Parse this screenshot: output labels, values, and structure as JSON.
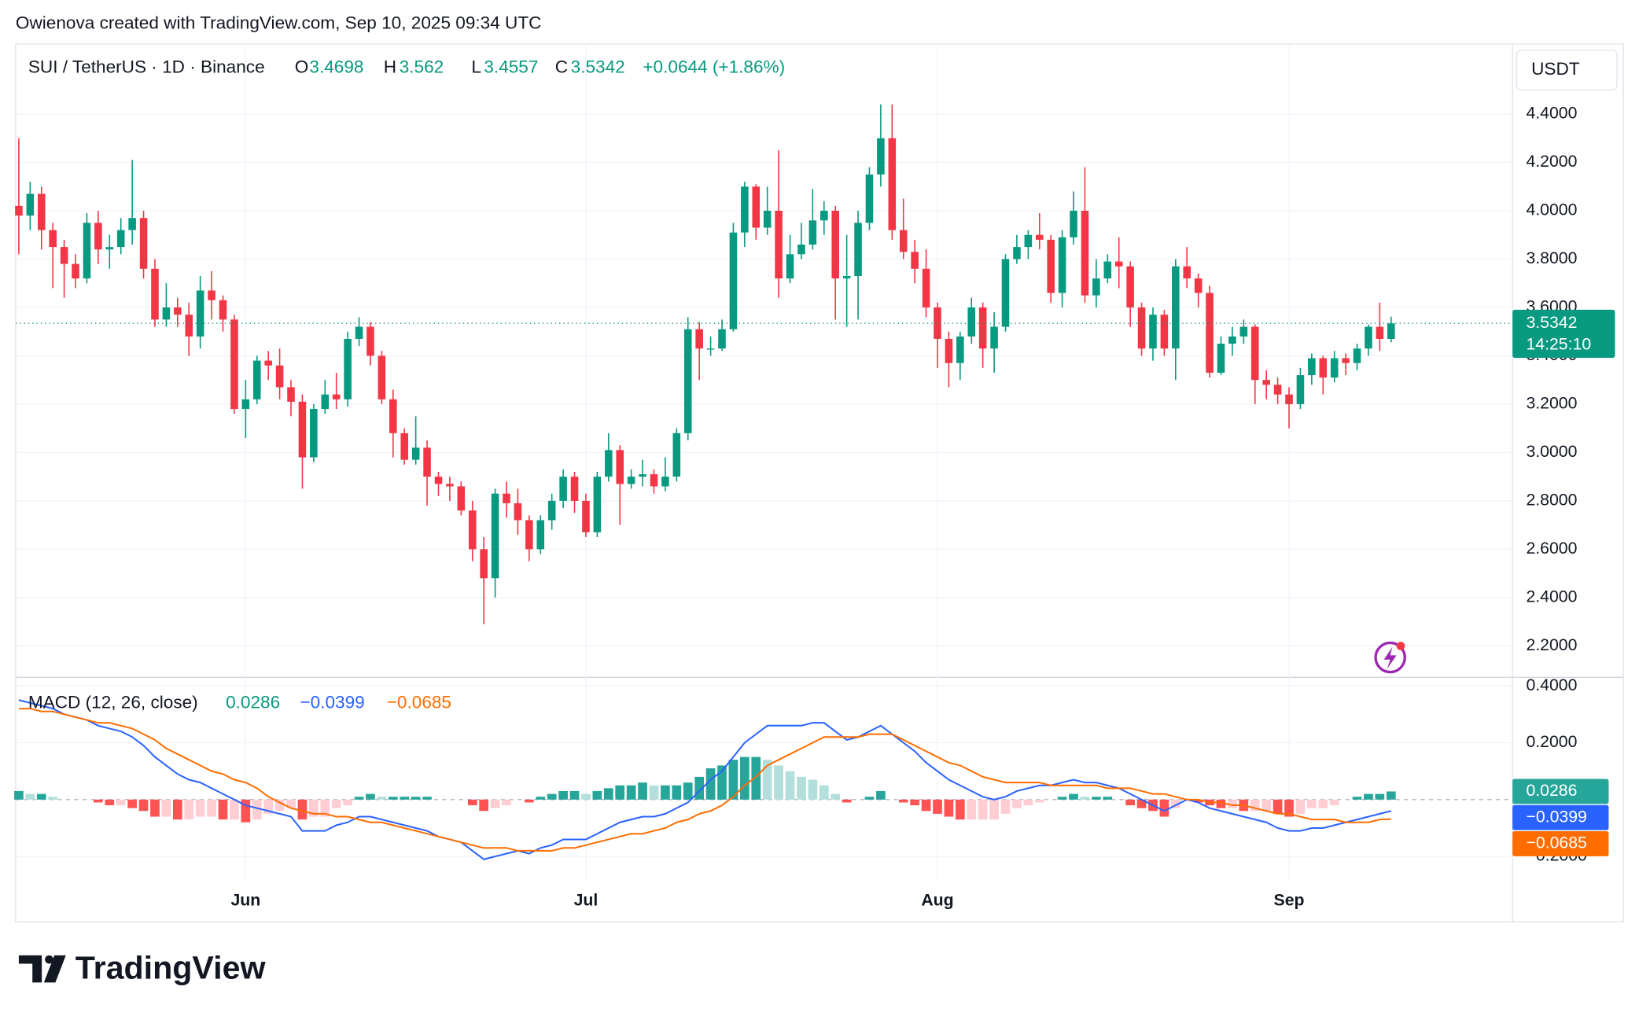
{
  "attribution": "Owienova created with TradingView.com, Sep 10, 2025 09:34 UTC",
  "currency": "USDT",
  "countdown": "14:25:10",
  "brand": "TradingView",
  "chart_data": [
    {
      "type": "candlestick",
      "title": "SUI / TetherUS · 1D · Binance",
      "ohlc_labels": [
        "O",
        "H",
        "L",
        "C"
      ],
      "change_label": "+0.0644 (+1.86%)",
      "categories": [
        null,
        null,
        null,
        null,
        null,
        null,
        null,
        null,
        null,
        null,
        null,
        null,
        null,
        null,
        null,
        null,
        null,
        null,
        null,
        null,
        "Jun",
        null,
        null,
        null,
        null,
        null,
        null,
        null,
        null,
        null,
        null,
        null,
        null,
        null,
        null,
        null,
        null,
        null,
        null,
        null,
        null,
        null,
        null,
        null,
        null,
        null,
        null,
        null,
        null,
        null,
        "Jul",
        null,
        null,
        null,
        null,
        null,
        null,
        null,
        null,
        null,
        null,
        null,
        null,
        null,
        null,
        null,
        null,
        null,
        null,
        null,
        null,
        null,
        null,
        null,
        null,
        null,
        null,
        null,
        null,
        null,
        null,
        "Aug",
        null,
        null,
        null,
        null,
        null,
        null,
        null,
        null,
        null,
        null,
        null,
        null,
        null,
        null,
        null,
        null,
        null,
        null,
        null,
        null,
        null,
        null,
        null,
        null,
        null,
        null,
        null,
        null,
        null,
        null,
        "Sep",
        null,
        null,
        null,
        null,
        null,
        null,
        null,
        null,
        null
      ],
      "open": [
        4.02,
        3.98,
        4.07,
        3.92,
        3.85,
        3.78,
        3.72,
        3.95,
        3.84,
        3.85,
        3.92,
        3.97,
        3.76,
        3.55,
        3.6,
        3.57,
        3.48,
        3.67,
        3.63,
        3.55,
        3.18,
        3.22,
        3.38,
        3.36,
        3.27,
        3.21,
        2.98,
        3.18,
        3.24,
        3.22,
        3.47,
        3.52,
        3.4,
        3.22,
        3.08,
        2.97,
        3.02,
        2.9,
        2.87,
        2.86,
        2.76,
        2.6,
        2.48,
        2.83,
        2.79,
        2.72,
        2.6,
        2.72,
        2.8,
        2.9,
        2.8,
        2.67,
        2.9,
        3.01,
        2.87,
        2.9,
        2.91,
        2.86,
        2.9,
        3.08,
        3.51,
        3.43,
        3.43,
        3.51,
        3.91,
        4.1,
        3.93,
        4.0,
        3.72,
        3.82,
        3.86,
        3.96,
        4.0,
        3.72,
        3.73,
        3.95,
        4.15,
        4.3,
        3.92,
        3.83,
        3.76,
        3.6,
        3.47,
        3.37,
        3.48,
        3.6,
        3.43,
        3.52,
        3.8,
        3.85,
        3.9,
        3.88,
        3.66,
        3.89,
        4.0,
        3.65,
        3.72,
        3.79,
        3.77,
        3.6,
        3.43,
        3.57,
        3.43,
        3.77,
        3.72,
        3.66,
        3.33,
        3.45,
        3.48,
        3.52,
        3.3,
        3.28,
        3.24,
        3.2,
        3.32,
        3.39,
        3.31,
        3.39,
        3.37,
        3.43,
        3.52,
        3.4698
      ],
      "high": [
        4.3,
        4.12,
        4.1,
        3.95,
        3.88,
        3.82,
        3.99,
        4.0,
        3.9,
        3.97,
        4.21,
        4.0,
        3.8,
        3.7,
        3.64,
        3.62,
        3.73,
        3.75,
        3.65,
        3.57,
        3.3,
        3.4,
        3.42,
        3.43,
        3.3,
        3.24,
        3.2,
        3.3,
        3.33,
        3.5,
        3.56,
        3.54,
        3.42,
        3.26,
        3.1,
        3.15,
        3.05,
        2.92,
        2.9,
        2.88,
        2.8,
        2.65,
        2.85,
        2.88,
        2.85,
        2.74,
        2.74,
        2.83,
        2.93,
        2.92,
        2.83,
        2.92,
        3.08,
        3.03,
        2.93,
        2.97,
        2.93,
        2.98,
        3.1,
        3.56,
        3.54,
        3.48,
        3.55,
        3.95,
        4.12,
        4.11,
        4.1,
        4.25,
        3.9,
        3.95,
        4.09,
        4.04,
        4.02,
        3.9,
        4.0,
        4.18,
        4.44,
        4.44,
        4.05,
        3.88,
        3.84,
        3.62,
        3.5,
        3.5,
        3.64,
        3.62,
        3.58,
        3.82,
        3.9,
        3.92,
        3.99,
        3.9,
        3.92,
        4.08,
        4.18,
        3.8,
        3.82,
        3.89,
        3.79,
        3.62,
        3.6,
        3.59,
        3.8,
        3.85,
        3.74,
        3.69,
        3.48,
        3.52,
        3.55,
        3.53,
        3.34,
        3.31,
        3.27,
        3.35,
        3.41,
        3.4,
        3.42,
        3.41,
        3.45,
        3.53,
        3.62,
        3.562
      ],
      "low": [
        3.82,
        3.92,
        3.84,
        3.68,
        3.64,
        3.68,
        3.7,
        3.78,
        3.76,
        3.82,
        3.86,
        3.72,
        3.52,
        3.52,
        3.52,
        3.4,
        3.43,
        3.55,
        3.5,
        3.16,
        3.06,
        3.2,
        3.3,
        3.22,
        3.15,
        2.85,
        2.96,
        3.16,
        3.18,
        3.19,
        3.44,
        3.36,
        3.2,
        2.98,
        2.95,
        2.95,
        2.78,
        2.82,
        2.8,
        2.74,
        2.55,
        2.29,
        2.4,
        2.73,
        2.66,
        2.55,
        2.58,
        2.68,
        2.77,
        2.75,
        2.65,
        2.65,
        2.88,
        2.7,
        2.85,
        2.86,
        2.83,
        2.84,
        2.88,
        3.05,
        3.3,
        3.4,
        3.42,
        3.5,
        3.85,
        3.88,
        3.9,
        3.64,
        3.7,
        3.8,
        3.84,
        3.9,
        3.55,
        3.52,
        3.55,
        3.92,
        4.1,
        3.88,
        3.8,
        3.7,
        3.56,
        3.35,
        3.27,
        3.3,
        3.45,
        3.35,
        3.33,
        3.5,
        3.78,
        3.8,
        3.84,
        3.62,
        3.6,
        3.86,
        3.62,
        3.6,
        3.7,
        3.68,
        3.52,
        3.4,
        3.38,
        3.4,
        3.3,
        3.68,
        3.6,
        3.31,
        3.32,
        3.4,
        3.45,
        3.2,
        3.22,
        3.2,
        3.1,
        3.18,
        3.28,
        3.24,
        3.29,
        3.32,
        3.34,
        3.4,
        3.42,
        3.4557
      ],
      "close": [
        3.98,
        4.07,
        3.92,
        3.85,
        3.78,
        3.72,
        3.95,
        3.84,
        3.85,
        3.92,
        3.97,
        3.76,
        3.55,
        3.6,
        3.57,
        3.48,
        3.67,
        3.63,
        3.55,
        3.18,
        3.22,
        3.38,
        3.36,
        3.27,
        3.21,
        2.98,
        3.18,
        3.24,
        3.22,
        3.47,
        3.52,
        3.4,
        3.22,
        3.08,
        2.97,
        3.02,
        2.9,
        2.87,
        2.86,
        2.76,
        2.6,
        2.48,
        2.83,
        2.79,
        2.72,
        2.6,
        2.72,
        2.8,
        2.9,
        2.8,
        2.67,
        2.9,
        3.01,
        2.87,
        2.9,
        2.91,
        2.86,
        2.9,
        3.08,
        3.51,
        3.43,
        3.43,
        3.51,
        3.91,
        4.1,
        3.93,
        4.0,
        3.72,
        3.82,
        3.86,
        3.96,
        4.0,
        3.72,
        3.73,
        3.95,
        4.15,
        4.3,
        3.92,
        3.83,
        3.76,
        3.6,
        3.47,
        3.37,
        3.48,
        3.6,
        3.43,
        3.52,
        3.8,
        3.85,
        3.9,
        3.88,
        3.66,
        3.89,
        4.0,
        3.65,
        3.72,
        3.79,
        3.77,
        3.6,
        3.43,
        3.57,
        3.43,
        3.77,
        3.72,
        3.66,
        3.33,
        3.45,
        3.48,
        3.52,
        3.3,
        3.28,
        3.24,
        3.2,
        3.32,
        3.39,
        3.31,
        3.39,
        3.37,
        3.43,
        3.52,
        3.4698,
        3.5342
      ],
      "up_color": "#089981",
      "down_color": "#f23645",
      "ylim": [
        2.07,
        4.69
      ],
      "yticks": [
        {
          "value": 2.2,
          "label": "2.2000"
        },
        {
          "value": 2.4,
          "label": "2.4000"
        },
        {
          "value": 2.6,
          "label": "2.6000"
        },
        {
          "value": 2.8,
          "label": "2.8000"
        },
        {
          "value": 3.0,
          "label": "3.0000"
        },
        {
          "value": 3.2,
          "label": "3.2000"
        },
        {
          "value": 3.4,
          "label": "3.4000"
        },
        {
          "value": 3.6,
          "label": "3.6000"
        },
        {
          "value": 3.8,
          "label": "3.8000"
        },
        {
          "value": 4.0,
          "label": "4.0000"
        },
        {
          "value": 4.2,
          "label": "4.2000"
        },
        {
          "value": 4.4,
          "label": "4.4000"
        }
      ],
      "grid": true
    },
    {
      "type": "macd",
      "title": "MACD (12, 26, close)",
      "series": [
        {
          "style": "histogram",
          "colors": [
            "#26a69a",
            "#b2dfdb",
            "#ff5252",
            "#ffcdd2"
          ],
          "values": [
            0.03,
            0.02,
            0.02,
            0.01,
            0.0,
            0.0,
            0.0,
            -0.01,
            -0.02,
            -0.02,
            -0.03,
            -0.04,
            -0.06,
            -0.06,
            -0.07,
            -0.07,
            -0.06,
            -0.06,
            -0.07,
            -0.07,
            -0.08,
            -0.07,
            -0.05,
            -0.04,
            -0.03,
            -0.07,
            -0.06,
            -0.06,
            -0.03,
            -0.02,
            0.01,
            0.02,
            0.01,
            0.01,
            0.01,
            0.01,
            0.01,
            0.0,
            0.0,
            0.0,
            -0.02,
            -0.04,
            -0.03,
            -0.02,
            0.0,
            -0.01,
            0.01,
            0.02,
            0.03,
            0.03,
            0.02,
            0.03,
            0.04,
            0.05,
            0.05,
            0.06,
            0.05,
            0.05,
            0.05,
            0.06,
            0.08,
            0.11,
            0.12,
            0.14,
            0.15,
            0.15,
            0.14,
            0.12,
            0.1,
            0.08,
            0.07,
            0.05,
            0.02,
            -0.01,
            0.0,
            0.01,
            0.03,
            0.0,
            -0.01,
            -0.02,
            -0.04,
            -0.05,
            -0.06,
            -0.07,
            -0.07,
            -0.07,
            -0.07,
            -0.05,
            -0.03,
            -0.02,
            -0.01,
            0.0,
            0.01,
            0.02,
            0.01,
            0.01,
            0.01,
            0.0,
            -0.02,
            -0.03,
            -0.04,
            -0.06,
            -0.03,
            0.0,
            -0.01,
            -0.02,
            -0.03,
            -0.03,
            -0.04,
            -0.04,
            -0.04,
            -0.05,
            -0.06,
            -0.05,
            -0.03,
            -0.03,
            -0.02,
            0.0,
            0.01,
            0.02,
            0.02,
            0.0286
          ]
        },
        {
          "style": "line",
          "color": "#2962ff",
          "last_label": "−0.0399",
          "values": [
            0.35,
            0.34,
            0.33,
            0.32,
            0.3,
            0.29,
            0.28,
            0.26,
            0.25,
            0.24,
            0.22,
            0.19,
            0.15,
            0.12,
            0.09,
            0.07,
            0.06,
            0.04,
            0.02,
            0.0,
            -0.02,
            -0.03,
            -0.04,
            -0.05,
            -0.06,
            -0.11,
            -0.11,
            -0.11,
            -0.09,
            -0.08,
            -0.06,
            -0.06,
            -0.07,
            -0.08,
            -0.09,
            -0.1,
            -0.11,
            -0.13,
            -0.14,
            -0.15,
            -0.18,
            -0.21,
            -0.2,
            -0.19,
            -0.18,
            -0.19,
            -0.17,
            -0.16,
            -0.14,
            -0.14,
            -0.14,
            -0.12,
            -0.1,
            -0.08,
            -0.07,
            -0.06,
            -0.06,
            -0.05,
            -0.03,
            -0.01,
            0.03,
            0.07,
            0.1,
            0.15,
            0.2,
            0.23,
            0.26,
            0.26,
            0.26,
            0.26,
            0.27,
            0.27,
            0.24,
            0.21,
            0.22,
            0.24,
            0.26,
            0.23,
            0.2,
            0.17,
            0.13,
            0.1,
            0.07,
            0.05,
            0.03,
            0.01,
            0.0,
            0.01,
            0.03,
            0.04,
            0.05,
            0.05,
            0.06,
            0.07,
            0.06,
            0.06,
            0.05,
            0.04,
            0.02,
            0.0,
            -0.02,
            -0.04,
            -0.02,
            0.0,
            -0.01,
            -0.03,
            -0.04,
            -0.05,
            -0.06,
            -0.07,
            -0.08,
            -0.1,
            -0.11,
            -0.11,
            -0.1,
            -0.1,
            -0.09,
            -0.08,
            -0.07,
            -0.06,
            -0.05,
            -0.0399
          ]
        },
        {
          "style": "line",
          "color": "#ff6d00",
          "last_label": "−0.0685",
          "values": [
            0.32,
            0.32,
            0.31,
            0.31,
            0.3,
            0.29,
            0.28,
            0.27,
            0.27,
            0.26,
            0.25,
            0.23,
            0.21,
            0.18,
            0.16,
            0.14,
            0.12,
            0.1,
            0.09,
            0.07,
            0.06,
            0.04,
            0.01,
            -0.01,
            -0.03,
            -0.04,
            -0.05,
            -0.05,
            -0.06,
            -0.06,
            -0.07,
            -0.08,
            -0.08,
            -0.09,
            -0.1,
            -0.11,
            -0.12,
            -0.13,
            -0.14,
            -0.15,
            -0.16,
            -0.17,
            -0.17,
            -0.17,
            -0.18,
            -0.18,
            -0.18,
            -0.18,
            -0.17,
            -0.17,
            -0.16,
            -0.15,
            -0.14,
            -0.13,
            -0.12,
            -0.12,
            -0.11,
            -0.1,
            -0.08,
            -0.07,
            -0.05,
            -0.04,
            -0.02,
            0.01,
            0.05,
            0.08,
            0.12,
            0.14,
            0.16,
            0.18,
            0.2,
            0.22,
            0.22,
            0.22,
            0.22,
            0.23,
            0.23,
            0.23,
            0.21,
            0.19,
            0.17,
            0.15,
            0.13,
            0.12,
            0.1,
            0.08,
            0.07,
            0.06,
            0.06,
            0.06,
            0.06,
            0.05,
            0.05,
            0.05,
            0.05,
            0.05,
            0.04,
            0.04,
            0.04,
            0.03,
            0.02,
            0.02,
            0.01,
            0.0,
            0.0,
            -0.01,
            -0.01,
            -0.02,
            -0.02,
            -0.03,
            -0.04,
            -0.05,
            -0.05,
            -0.06,
            -0.07,
            -0.07,
            -0.07,
            -0.08,
            -0.08,
            -0.08,
            -0.07,
            -0.0685
          ]
        }
      ],
      "ylim": [
        -0.43,
        0.43
      ],
      "yticks": [
        {
          "value": 0.4,
          "label": "0.4000"
        },
        {
          "value": 0.2,
          "label": "0.2000"
        },
        {
          "value": -0.2,
          "label": "−0.2000"
        }
      ]
    }
  ]
}
